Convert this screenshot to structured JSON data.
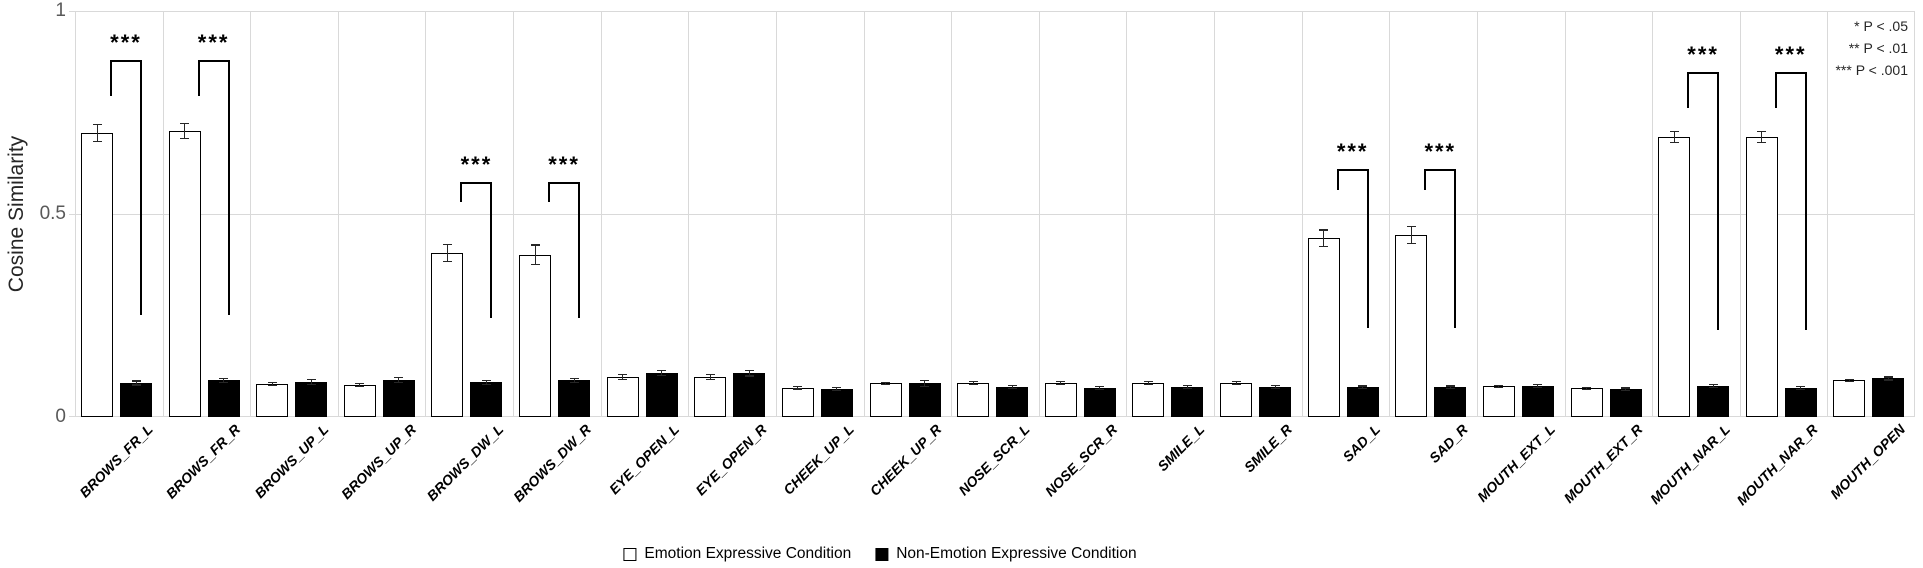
{
  "axis": {
    "y_title": "Cosine Similarity",
    "y_ticks": [
      {
        "label": "1",
        "value": 1
      },
      {
        "label": "0.5",
        "value": 0.5
      },
      {
        "label": "0",
        "value": 0
      }
    ]
  },
  "significance_key": {
    "lines": [
      "* P < .05",
      "** P < .01",
      "*** P < .001"
    ]
  },
  "legend": {
    "items": [
      {
        "label": "Emotion Expressive Condition",
        "swatch": "#ffffff"
      },
      {
        "label": "Non-Emotion Expressive Condition",
        "swatch": "#000000"
      }
    ]
  },
  "colors": {
    "grid": "#d9d9d9",
    "tick_text": "#595959",
    "bar_border": "#000000",
    "emotion_fill": "#ffffff",
    "non_emotion_fill": "#000000",
    "error_bar": "#262626",
    "bracket": "#000000"
  },
  "chart_data": {
    "type": "bar",
    "title": "",
    "xlabel": "",
    "ylabel": "Cosine Similarity",
    "ylim": [
      0,
      1
    ],
    "ytick_values": [
      0,
      0.5,
      1
    ],
    "grid": {
      "horizontal_lines_at": [
        0.5,
        1.0
      ],
      "vertical_category_separators": true
    },
    "legend_position": "bottom-center",
    "categories": [
      "BROWS_FR_L",
      "BROWS_FR_R",
      "BROWS_UP_L",
      "BROWS_UP_R",
      "BROWS_DW_L",
      "BROWS_DW_R",
      "EYE_OPEN_L",
      "EYE_OPEN_R",
      "CHEEK_UP_L",
      "CHEEK_UP_R",
      "NOSE_SCR_L",
      "NOSE_SCR_R",
      "SMILE_L",
      "SMILE_R",
      "SAD_L",
      "SAD_R",
      "MOUTH_EXT_L",
      "MOUTH_EXT_R",
      "MOUTH_NAR_L",
      "MOUTH_NAR_R",
      "MOUTH_OPEN"
    ],
    "series": [
      {
        "name": "Emotion Expressive Condition",
        "fill": "#ffffff",
        "values": [
          0.7,
          0.705,
          0.081,
          0.079,
          0.405,
          0.4,
          0.099,
          0.099,
          0.072,
          0.083,
          0.084,
          0.084,
          0.084,
          0.084,
          0.44,
          0.448,
          0.076,
          0.071,
          0.69,
          0.69,
          0.09
        ],
        "errors": [
          0.022,
          0.02,
          0.005,
          0.005,
          0.022,
          0.025,
          0.007,
          0.007,
          0.004,
          0.004,
          0.004,
          0.004,
          0.004,
          0.005,
          0.022,
          0.022,
          0.004,
          0.004,
          0.015,
          0.015,
          0.004
        ]
      },
      {
        "name": "Non-Emotion Expressive Condition",
        "fill": "#000000",
        "values": [
          0.084,
          0.09,
          0.086,
          0.091,
          0.086,
          0.09,
          0.108,
          0.108,
          0.069,
          0.083,
          0.074,
          0.071,
          0.074,
          0.074,
          0.074,
          0.074,
          0.076,
          0.069,
          0.076,
          0.072,
          0.095
        ],
        "errors": [
          0.006,
          0.006,
          0.007,
          0.007,
          0.006,
          0.006,
          0.007,
          0.008,
          0.005,
          0.008,
          0.005,
          0.005,
          0.005,
          0.005,
          0.004,
          0.004,
          0.005,
          0.004,
          0.005,
          0.005,
          0.005
        ]
      }
    ],
    "significance": [
      {
        "category": "BROWS_FR_L",
        "label": "***",
        "bracket_top": 0.88,
        "left_drop_to": 0.79,
        "right_drop_to": 0.25
      },
      {
        "category": "BROWS_FR_R",
        "label": "***",
        "bracket_top": 0.88,
        "left_drop_to": 0.79,
        "right_drop_to": 0.25
      },
      {
        "category": "BROWS_DW_L",
        "label": "***",
        "bracket_top": 0.58,
        "left_drop_to": 0.53,
        "right_drop_to": 0.245
      },
      {
        "category": "BROWS_DW_R",
        "label": "***",
        "bracket_top": 0.58,
        "left_drop_to": 0.53,
        "right_drop_to": 0.245
      },
      {
        "category": "SAD_L",
        "label": "***",
        "bracket_top": 0.61,
        "left_drop_to": 0.56,
        "right_drop_to": 0.22
      },
      {
        "category": "SAD_R",
        "label": "***",
        "bracket_top": 0.61,
        "left_drop_to": 0.56,
        "right_drop_to": 0.22
      },
      {
        "category": "MOUTH_NAR_L",
        "label": "***",
        "bracket_top": 0.85,
        "left_drop_to": 0.76,
        "right_drop_to": 0.215
      },
      {
        "category": "MOUTH_NAR_R",
        "label": "***",
        "bracket_top": 0.85,
        "left_drop_to": 0.76,
        "right_drop_to": 0.215
      }
    ]
  }
}
